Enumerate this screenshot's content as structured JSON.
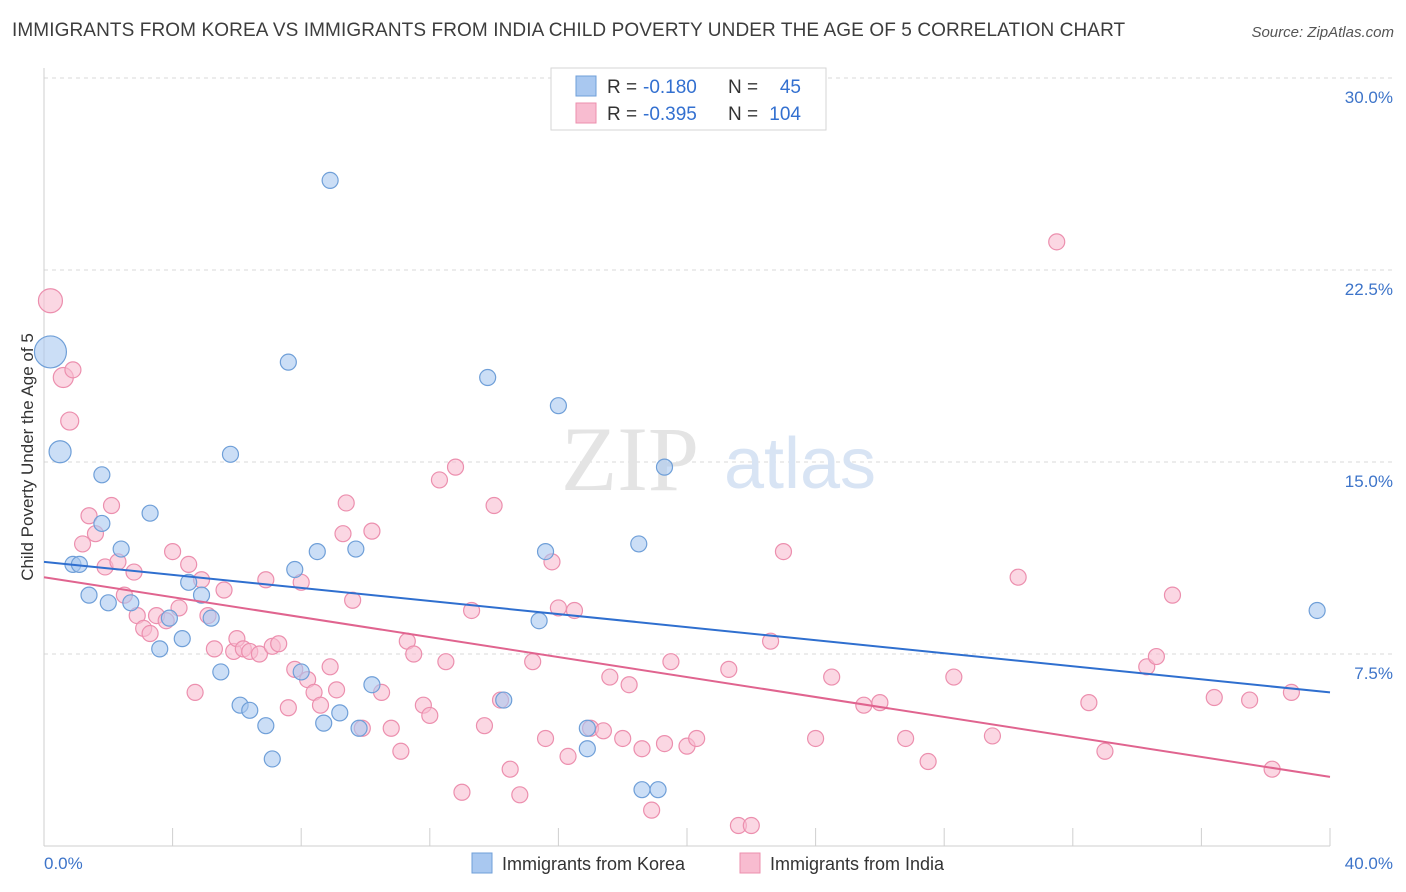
{
  "header": {
    "title": "IMMIGRANTS FROM KOREA VS IMMIGRANTS FROM INDIA CHILD POVERTY UNDER THE AGE OF 5 CORRELATION CHART",
    "source": "Source: ZipAtlas.com"
  },
  "watermark": {
    "zip": "ZIP",
    "atlas": "atlas"
  },
  "legend_top": {
    "rows": [
      {
        "r_label": "R =",
        "r_value": "-0.180",
        "n_label": "N =",
        "n_value": "45"
      },
      {
        "r_label": "R =",
        "r_value": "-0.395",
        "n_label": "N =",
        "n_value": "104"
      }
    ]
  },
  "colors": {
    "korea_fill": "#a9c8f0",
    "korea_stroke": "#6f9fd8",
    "korea_line": "#2f6fcf",
    "india_fill": "#f8bcd0",
    "india_stroke": "#ec8fae",
    "india_line": "#e0648f",
    "value_blue": "#3370d0",
    "grid": "#d8d8d8",
    "axis_label_blue": "#3d74c9"
  },
  "chart_data": {
    "type": "scatter",
    "title": "IMMIGRANTS FROM KOREA VS IMMIGRANTS FROM INDIA CHILD POVERTY UNDER THE AGE OF 5 CORRELATION CHART",
    "xlabel": "",
    "ylabel": "Child Poverty Under the Age of 5",
    "xlim": [
      0,
      40
    ],
    "ylim": [
      0,
      30
    ],
    "x_tick_labels": [
      "0.0%",
      "40.0%"
    ],
    "y_ticks": [
      7.5,
      15.0,
      22.5,
      30.0
    ],
    "y_tick_labels": [
      "7.5%",
      "15.0%",
      "22.5%",
      "30.0%"
    ],
    "grid": true,
    "legend": "bottom-center",
    "series": [
      {
        "name": "Immigrants from Korea",
        "trend": {
          "x0": 0,
          "y0": 11.1,
          "x1": 40,
          "y1": 6.0
        },
        "points": [
          [
            0.2,
            19.3,
            16
          ],
          [
            0.5,
            15.4,
            11
          ],
          [
            0.9,
            11.0,
            8
          ],
          [
            1.1,
            11.0,
            8
          ],
          [
            1.4,
            9.8,
            8
          ],
          [
            1.8,
            14.5,
            8
          ],
          [
            1.8,
            12.6,
            8
          ],
          [
            2.0,
            9.5,
            8
          ],
          [
            2.4,
            11.6,
            8
          ],
          [
            2.7,
            9.5,
            8
          ],
          [
            3.3,
            13.0,
            8
          ],
          [
            3.6,
            7.7,
            8
          ],
          [
            3.9,
            8.9,
            8
          ],
          [
            4.3,
            8.1,
            8
          ],
          [
            4.5,
            10.3,
            8
          ],
          [
            4.9,
            9.8,
            8
          ],
          [
            5.2,
            8.9,
            8
          ],
          [
            5.5,
            6.8,
            8
          ],
          [
            5.8,
            15.3,
            8
          ],
          [
            6.1,
            5.5,
            8
          ],
          [
            6.4,
            5.3,
            8
          ],
          [
            6.9,
            4.7,
            8
          ],
          [
            7.1,
            3.4,
            8
          ],
          [
            7.6,
            18.9,
            8
          ],
          [
            7.8,
            10.8,
            8
          ],
          [
            8.0,
            6.8,
            8
          ],
          [
            8.5,
            11.5,
            8
          ],
          [
            8.7,
            4.8,
            8
          ],
          [
            8.9,
            26.0,
            8
          ],
          [
            9.2,
            5.2,
            8
          ],
          [
            9.7,
            11.6,
            8
          ],
          [
            9.8,
            4.6,
            8
          ],
          [
            10.2,
            6.3,
            8
          ],
          [
            13.8,
            18.3,
            8
          ],
          [
            14.3,
            5.7,
            8
          ],
          [
            15.4,
            8.8,
            8
          ],
          [
            15.6,
            11.5,
            8
          ],
          [
            16.0,
            17.2,
            8
          ],
          [
            16.9,
            4.6,
            8
          ],
          [
            16.9,
            3.8,
            8
          ],
          [
            18.5,
            11.8,
            8
          ],
          [
            18.6,
            2.2,
            8
          ],
          [
            19.1,
            2.2,
            8
          ],
          [
            19.3,
            14.8,
            8
          ],
          [
            39.6,
            9.2,
            8
          ]
        ]
      },
      {
        "name": "Immigrants from India",
        "trend": {
          "x0": 0,
          "y0": 10.5,
          "x1": 40,
          "y1": 2.7
        },
        "points": [
          [
            0.2,
            21.3,
            12
          ],
          [
            0.6,
            18.3,
            10
          ],
          [
            0.8,
            16.6,
            9
          ],
          [
            0.9,
            18.6,
            8
          ],
          [
            1.2,
            11.8,
            8
          ],
          [
            1.4,
            12.9,
            8
          ],
          [
            1.6,
            12.2,
            8
          ],
          [
            1.9,
            10.9,
            8
          ],
          [
            2.1,
            13.3,
            8
          ],
          [
            2.3,
            11.1,
            8
          ],
          [
            2.5,
            9.8,
            8
          ],
          [
            2.8,
            10.7,
            8
          ],
          [
            2.9,
            9.0,
            8
          ],
          [
            3.1,
            8.5,
            8
          ],
          [
            3.3,
            8.3,
            8
          ],
          [
            3.5,
            9.0,
            8
          ],
          [
            3.8,
            8.8,
            8
          ],
          [
            4.0,
            11.5,
            8
          ],
          [
            4.2,
            9.3,
            8
          ],
          [
            4.5,
            11.0,
            8
          ],
          [
            4.7,
            6.0,
            8
          ],
          [
            4.9,
            10.4,
            8
          ],
          [
            5.1,
            9.0,
            8
          ],
          [
            5.3,
            7.7,
            8
          ],
          [
            5.6,
            10.0,
            8
          ],
          [
            5.9,
            7.6,
            8
          ],
          [
            6.0,
            8.1,
            8
          ],
          [
            6.2,
            7.7,
            8
          ],
          [
            6.4,
            7.6,
            8
          ],
          [
            6.7,
            7.5,
            8
          ],
          [
            6.9,
            10.4,
            8
          ],
          [
            7.1,
            7.8,
            8
          ],
          [
            7.3,
            7.9,
            8
          ],
          [
            7.6,
            5.4,
            8
          ],
          [
            7.8,
            6.9,
            8
          ],
          [
            8.0,
            10.3,
            8
          ],
          [
            8.2,
            6.5,
            8
          ],
          [
            8.4,
            6.0,
            8
          ],
          [
            8.6,
            5.5,
            8
          ],
          [
            8.9,
            7.0,
            8
          ],
          [
            9.1,
            6.1,
            8
          ],
          [
            9.3,
            12.2,
            8
          ],
          [
            9.4,
            13.4,
            8
          ],
          [
            9.6,
            9.6,
            8
          ],
          [
            9.9,
            4.6,
            8
          ],
          [
            10.2,
            12.3,
            8
          ],
          [
            10.5,
            6.0,
            8
          ],
          [
            10.8,
            4.6,
            8
          ],
          [
            11.1,
            3.7,
            8
          ],
          [
            11.3,
            8.0,
            8
          ],
          [
            11.5,
            7.5,
            8
          ],
          [
            11.8,
            5.5,
            8
          ],
          [
            12.0,
            5.1,
            8
          ],
          [
            12.3,
            14.3,
            8
          ],
          [
            12.5,
            7.2,
            8
          ],
          [
            12.8,
            14.8,
            8
          ],
          [
            13.0,
            2.1,
            8
          ],
          [
            13.3,
            9.2,
            8
          ],
          [
            13.7,
            4.7,
            8
          ],
          [
            14.0,
            13.3,
            8
          ],
          [
            14.2,
            5.7,
            8
          ],
          [
            14.5,
            3.0,
            8
          ],
          [
            14.8,
            2.0,
            8
          ],
          [
            15.2,
            7.2,
            8
          ],
          [
            15.6,
            4.2,
            8
          ],
          [
            15.8,
            11.1,
            8
          ],
          [
            16.0,
            9.3,
            8
          ],
          [
            16.3,
            3.5,
            8
          ],
          [
            16.5,
            9.2,
            8
          ],
          [
            17.0,
            4.6,
            8
          ],
          [
            17.4,
            4.5,
            8
          ],
          [
            17.6,
            6.6,
            8
          ],
          [
            18.0,
            4.2,
            8
          ],
          [
            18.2,
            6.3,
            8
          ],
          [
            18.6,
            3.8,
            8
          ],
          [
            18.9,
            1.4,
            8
          ],
          [
            19.3,
            4.0,
            8
          ],
          [
            19.5,
            7.2,
            8
          ],
          [
            20.0,
            3.9,
            8
          ],
          [
            20.3,
            4.2,
            8
          ],
          [
            21.3,
            6.9,
            8
          ],
          [
            21.6,
            0.8,
            8
          ],
          [
            22.0,
            0.8,
            8
          ],
          [
            22.6,
            8.0,
            8
          ],
          [
            23.0,
            11.5,
            8
          ],
          [
            24.0,
            4.2,
            8
          ],
          [
            24.5,
            6.6,
            8
          ],
          [
            25.5,
            5.5,
            8
          ],
          [
            26.0,
            5.6,
            8
          ],
          [
            26.8,
            4.2,
            8
          ],
          [
            27.5,
            3.3,
            8
          ],
          [
            28.3,
            6.6,
            8
          ],
          [
            29.5,
            4.3,
            8
          ],
          [
            30.3,
            10.5,
            8
          ],
          [
            31.5,
            23.6,
            8
          ],
          [
            32.5,
            5.6,
            8
          ],
          [
            33.0,
            3.7,
            8
          ],
          [
            34.3,
            7.0,
            8
          ],
          [
            34.6,
            7.4,
            8
          ],
          [
            35.1,
            9.8,
            8
          ],
          [
            36.4,
            5.8,
            8
          ],
          [
            37.5,
            5.7,
            8
          ],
          [
            38.2,
            3.0,
            8
          ],
          [
            38.8,
            6.0,
            8
          ]
        ]
      }
    ]
  }
}
